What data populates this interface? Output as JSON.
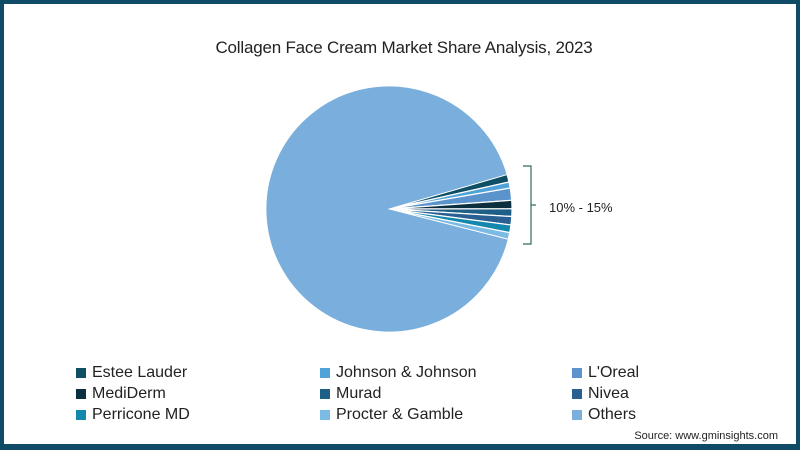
{
  "chart_data": {
    "type": "pie",
    "title": "Collagen Face Cream Market Share Analysis, 2023",
    "categories": [
      "Estee Lauder",
      "Johnson & Johnson",
      "L'Oreal",
      "MediDerm",
      "Murad",
      "Nivea",
      "Perricone MD",
      "Procter & Gamble",
      "Others"
    ],
    "values": [
      1.0,
      0.8,
      1.6,
      1.1,
      1.0,
      1.1,
      1.0,
      0.9,
      91.5
    ],
    "colors": [
      "#0e4f66",
      "#4fa3d9",
      "#5b93cc",
      "#0b2f3f",
      "#1d5f86",
      "#2a5f92",
      "#1487ad",
      "#7bbbe3",
      "#7aaedc"
    ],
    "annotation": "10% - 15%",
    "legend_position": "bottom",
    "source": "Source: www.gminsights.com"
  },
  "title": "Collagen Face Cream Market Share Analysis, 2023",
  "annotation": "10% - 15%",
  "legend": [
    {
      "label": "Estee Lauder",
      "color": "#0e4f66"
    },
    {
      "label": "Johnson & Johnson",
      "color": "#4fa3d9"
    },
    {
      "label": "L'Oreal",
      "color": "#5b93cc"
    },
    {
      "label": "MediDerm",
      "color": "#0b2f3f"
    },
    {
      "label": "Murad",
      "color": "#1d5f86"
    },
    {
      "label": "Nivea",
      "color": "#2a5f92"
    },
    {
      "label": "Perricone MD",
      "color": "#1487ad"
    },
    {
      "label": "Procter & Gamble",
      "color": "#7bbbe3"
    },
    {
      "label": "Others",
      "color": "#7aaedc"
    }
  ],
  "source": "Source: www.gminsights.com",
  "colors": {
    "border": "#0f4a66",
    "others": "#7aaedc",
    "bracket": "#2e6b5e"
  }
}
